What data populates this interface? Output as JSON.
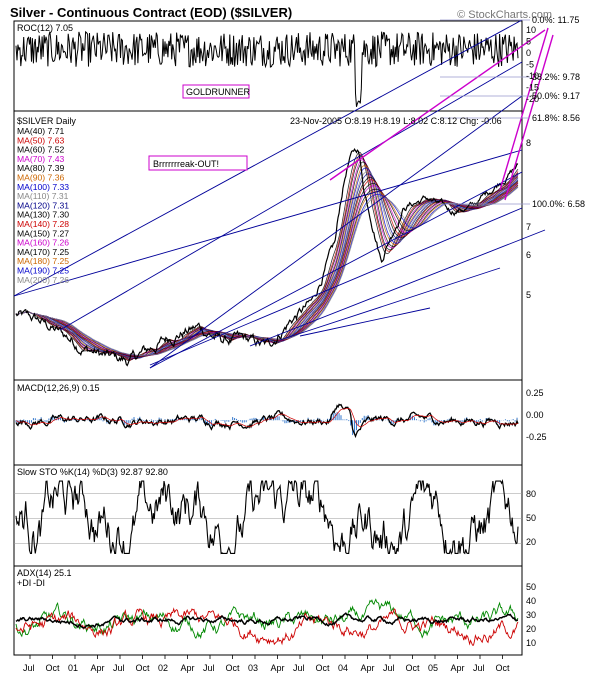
{
  "header": {
    "title": "Silver - Continuous Contract (EOD) ($SILVER)",
    "copyright": "© StockCharts.com"
  },
  "chart_data": [
    {
      "panel": "roc",
      "type": "line",
      "label": "ROC(12) 7.05",
      "ticks": [
        "10",
        "5",
        "0",
        "-5",
        "-10",
        "-15",
        "-20"
      ],
      "ylim": [
        -20,
        10
      ],
      "annotation": "GOLDRUNNER"
    },
    {
      "panel": "price",
      "type": "line",
      "label": "$SILVER Daily",
      "quote": "23-Nov-2005  O:8.19 H:8.19 L:8.02 C:8.12 Chg: -0.06",
      "annotation": "Brrrrrrreak-OUT!",
      "ticks": [
        "8",
        "7",
        "6",
        "5"
      ],
      "ylim": [
        4.1,
        9.5
      ],
      "fib_levels": [
        {
          "label": "0.0%: 11.75",
          "value": 11.75
        },
        {
          "label": "38.2%: 9.78",
          "value": 9.78
        },
        {
          "label": "50.0%: 9.17",
          "value": 9.17
        },
        {
          "label": "61.8%: 8.56",
          "value": 8.56
        },
        {
          "label": "100.0%: 6.58",
          "value": 6.58
        }
      ],
      "moving_averages": [
        {
          "label": "MA(40) 7.71",
          "color": "#000000"
        },
        {
          "label": "MA(50) 7.63",
          "color": "#cc0000"
        },
        {
          "label": "MA(60) 7.52",
          "color": "#000000"
        },
        {
          "label": "MA(70) 7.43",
          "color": "#cc00cc"
        },
        {
          "label": "MA(80) 7.39",
          "color": "#000000"
        },
        {
          "label": "MA(90) 7.36",
          "color": "#cc6600"
        },
        {
          "label": "MA(100) 7.33",
          "color": "#0000cc"
        },
        {
          "label": "MA(110) 7.31",
          "color": "#888888"
        },
        {
          "label": "MA(120) 7.31",
          "color": "#000088"
        },
        {
          "label": "MA(130) 7.30",
          "color": "#000000"
        },
        {
          "label": "MA(140) 7.28",
          "color": "#cc0000"
        },
        {
          "label": "MA(150) 7.27",
          "color": "#000000"
        },
        {
          "label": "MA(160) 7.26",
          "color": "#cc00cc"
        },
        {
          "label": "MA(170) 7.25",
          "color": "#000000"
        },
        {
          "label": "MA(180) 7.25",
          "color": "#cc6600"
        },
        {
          "label": "MA(190) 7.25",
          "color": "#0000cc"
        },
        {
          "label": "MA(200) 7.26",
          "color": "#888888"
        }
      ],
      "series": [
        {
          "name": "$SILVER",
          "x": [
            "Jul 00",
            "Oct 00",
            "01",
            "Apr 01",
            "Jul 01",
            "Oct 01",
            "02",
            "Apr 02",
            "Jul 02",
            "Oct 02",
            "03",
            "Apr 03",
            "Jul 03",
            "Oct 03",
            "04",
            "Apr 04",
            "Jul 04",
            "Oct 04",
            "05",
            "Apr 05",
            "Jul 05",
            "Oct 05",
            "Nov 05"
          ],
          "values": [
            5.0,
            4.9,
            4.7,
            4.5,
            4.35,
            4.3,
            4.5,
            4.7,
            4.8,
            4.6,
            4.6,
            4.5,
            4.9,
            5.2,
            6.3,
            8.0,
            6.0,
            7.1,
            7.3,
            7.0,
            7.1,
            7.6,
            8.12
          ]
        }
      ]
    },
    {
      "panel": "macd",
      "type": "line",
      "label": "MACD(12,26,9) 0.15",
      "ticks": [
        "0.25",
        "0.00",
        "-0.25"
      ],
      "ylim": [
        -0.4,
        0.35
      ]
    },
    {
      "panel": "stochastic",
      "type": "line",
      "label": "Slow STO %K(14) %D(3) 92.87 92.80",
      "ticks": [
        "80",
        "50",
        "20"
      ],
      "ylim": [
        0,
        100
      ]
    },
    {
      "panel": "adx",
      "type": "line",
      "label": "ADX(14) 25.1",
      "legend": [
        "+DI",
        "-DI"
      ],
      "ticks": [
        "50",
        "40",
        "30",
        "20",
        "10"
      ],
      "ylim": [
        0,
        60
      ]
    }
  ],
  "x_axis": {
    "labels": [
      "Jul",
      "Oct",
      "01",
      "Apr",
      "Jul",
      "Oct",
      "02",
      "Apr",
      "Jul",
      "Oct",
      "03",
      "Apr",
      "Jul",
      "Oct",
      "04",
      "Apr",
      "Jul",
      "Oct",
      "05",
      "Apr",
      "Jul",
      "Oct"
    ]
  },
  "colors": {
    "price_line": "#000000",
    "trend_line": "#000099",
    "fan_line": "#cc00cc",
    "annotation_box": "#cc00cc",
    "plus_di": "#008800",
    "minus_di": "#cc0000",
    "macd_hist": "#3377cc"
  }
}
